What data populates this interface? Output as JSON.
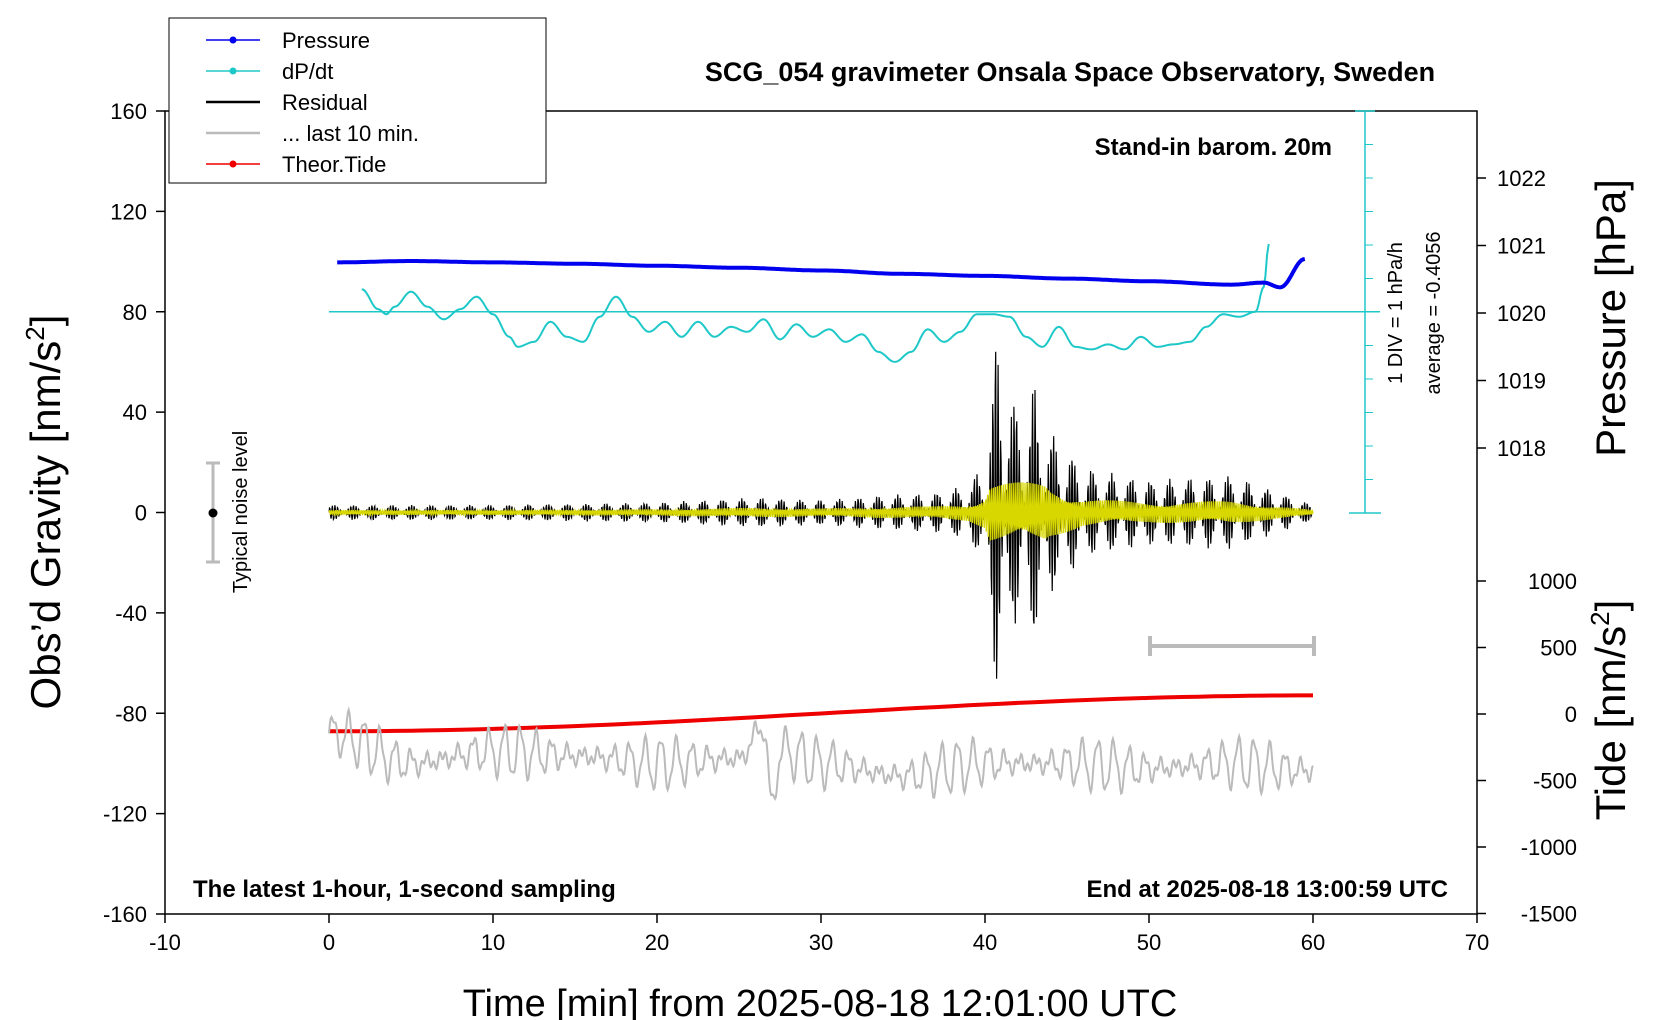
{
  "chart_data": {
    "type": "line",
    "title": "SCG_054 gravimeter Onsala Space Observatory, Sweden",
    "xlabel": "Time [min] from 2025-08-18 12:01:00 UTC",
    "ylabel_left_main": "Obs’d Gravity [nm/s",
    "ylabel_left_sup": "2",
    "ylabel_left_end": "]",
    "ylabel_right_pressure": "Pressure [hPa]",
    "ylabel_right_tide_main": "Tide [nm/s",
    "ylabel_right_tide_sup": "2",
    "ylabel_right_tide_end": "]",
    "xlim": [
      -10,
      70
    ],
    "ylim": [
      -160,
      160
    ],
    "x_ticks": [
      -10,
      0,
      10,
      20,
      30,
      40,
      50,
      60,
      70
    ],
    "y_ticks": [
      160,
      120,
      80,
      40,
      0,
      -40,
      -80,
      -120,
      -160
    ],
    "pressure_ticks": [
      1022,
      1021,
      1020,
      1019,
      1018
    ],
    "tide_ticks": [
      1000,
      500,
      0,
      -500,
      -1000,
      -1500
    ],
    "grid": false,
    "legend_position": "top-left",
    "legend": [
      {
        "label": "Pressure",
        "color": "#0000ee",
        "marker": true
      },
      {
        "label": "dP/dt",
        "color": "#1ec8c8",
        "marker": true
      },
      {
        "label": "Residual",
        "color": "#000000",
        "marker": false
      },
      {
        "label": "... last 10 min.",
        "color": "#bbbbbb",
        "marker": false
      },
      {
        "label": "Theor.Tide",
        "color": "#ee0000",
        "marker": true
      }
    ],
    "annotations": {
      "stand_in": "Stand-in barom. 20m",
      "latest": "The latest 1-hour, 1-second sampling",
      "end_at": "End at 2025-08-18 13:00:59 UTC",
      "noise": "Typical noise level",
      "div": "1 DIV = 1 hPa/h",
      "average": "average = -0.4056"
    },
    "series": [
      {
        "name": "Pressure",
        "axis": "pressure_hpa",
        "x": [
          0.5,
          5,
          10,
          15,
          20,
          25,
          30,
          35,
          40,
          45,
          50,
          55,
          57,
          58,
          59.5
        ],
        "values": [
          1020.75,
          1020.77,
          1020.75,
          1020.73,
          1020.7,
          1020.67,
          1020.63,
          1020.58,
          1020.55,
          1020.51,
          1020.47,
          1020.42,
          1020.45,
          1020.38,
          1020.8
        ]
      },
      {
        "name": "dP/dt",
        "axis": "gravity_nms2",
        "x": [
          2,
          3,
          3.5,
          4,
          5,
          6,
          7,
          8,
          9,
          10,
          11,
          11.5,
          12.5,
          13.5,
          14.5,
          15.5,
          16.5,
          17.5,
          18.5,
          19.5,
          20.5,
          21.5,
          22.5,
          23.5,
          24.5,
          25.5,
          26.5,
          27.5,
          28.5,
          29.5,
          30.5,
          31.5,
          32.5,
          33.5,
          34.5,
          35.5,
          36.5,
          37.5,
          38.5,
          39.5,
          40.5,
          41.5,
          42.5,
          43.5,
          44.5,
          45.5,
          46.5,
          47.5,
          48.5,
          49.5,
          50.5,
          51.5,
          52.5,
          53.5,
          54.5,
          55.5,
          56.5,
          57,
          57.3
        ],
        "values": [
          89,
          81,
          79,
          82,
          88,
          82,
          77,
          81,
          86,
          79,
          70,
          66,
          68,
          76,
          70,
          68,
          78,
          86,
          78,
          72,
          76,
          70,
          76,
          70,
          74,
          72,
          77,
          69,
          75,
          70,
          73,
          68,
          71,
          64,
          60,
          64,
          73,
          68,
          72,
          79,
          79,
          78,
          70,
          66,
          74,
          66,
          65,
          67,
          65,
          70,
          66,
          67,
          68,
          74,
          79,
          78,
          80,
          90,
          107
        ]
      },
      {
        "name": "Theor.Tide",
        "axis": "tide_nms2",
        "x": [
          0,
          60.3
        ],
        "values": [
          -130,
          140
        ]
      },
      {
        "name": "Residual",
        "axis": "gravity_nms2",
        "x": [
          0,
          10,
          20,
          26,
          30,
          34,
          37,
          39,
          40,
          40.5,
          40.7,
          41,
          41.3,
          41.7,
          42,
          42.5,
          43,
          43.5,
          44,
          46,
          50,
          55,
          60
        ],
        "values": [
          0,
          0,
          1,
          3,
          2,
          4,
          5,
          8,
          18,
          -50,
          74,
          -70,
          60,
          -40,
          45,
          -35,
          50,
          -40,
          30,
          15,
          10,
          12,
          0
        ]
      },
      {
        "name": "... last 10 min.",
        "axis": "gravity_nms2",
        "x": [
          0,
          5,
          10,
          15,
          20,
          25,
          26.5,
          27,
          27.5,
          30,
          35,
          40,
          45,
          50,
          55,
          60
        ],
        "values": [
          -88,
          -100,
          -95,
          -97,
          -100,
          -98,
          -85,
          -118,
          -95,
          -100,
          -105,
          -100,
          -100,
          -102,
          -100,
          -103
        ]
      }
    ]
  }
}
